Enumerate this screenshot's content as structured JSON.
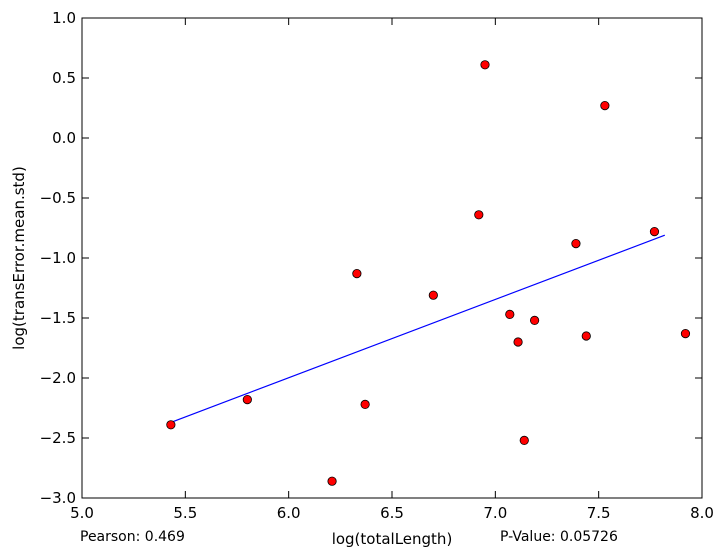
{
  "chart_data": {
    "type": "scatter",
    "xlabel": "log(totalLength)",
    "ylabel": "log(transError.mean.std)",
    "xlim": [
      5.0,
      8.0
    ],
    "ylim": [
      -3.0,
      1.0
    ],
    "xticks": [
      "5.0",
      "5.5",
      "6.0",
      "6.5",
      "7.0",
      "7.5",
      "8.0"
    ],
    "yticks": [
      "1.0",
      "0.5",
      "0.0",
      "−0.5",
      "−1.0",
      "−1.5",
      "−2.0",
      "−2.5",
      "−3.0"
    ],
    "grid": false,
    "series": [
      {
        "kind": "scatter",
        "color": "#ff0000",
        "points": [
          [
            5.43,
            -2.39
          ],
          [
            5.8,
            -2.18
          ],
          [
            6.21,
            -2.86
          ],
          [
            6.33,
            -1.13
          ],
          [
            6.37,
            -2.22
          ],
          [
            6.7,
            -1.31
          ],
          [
            6.92,
            -0.64
          ],
          [
            6.95,
            0.61
          ],
          [
            7.07,
            -1.47
          ],
          [
            7.11,
            -1.7
          ],
          [
            7.14,
            -2.52
          ],
          [
            7.19,
            -1.52
          ],
          [
            7.39,
            -0.88
          ],
          [
            7.44,
            -1.65
          ],
          [
            7.53,
            0.27
          ],
          [
            7.77,
            -0.78
          ],
          [
            7.92,
            -1.63
          ]
        ]
      },
      {
        "kind": "line",
        "color": "#0000ff",
        "points": [
          [
            5.43,
            -2.37
          ],
          [
            7.82,
            -0.81
          ]
        ]
      }
    ],
    "annotations": {
      "pearson": "Pearson: 0.469",
      "pvalue": "P-Value: 0.05726"
    }
  }
}
